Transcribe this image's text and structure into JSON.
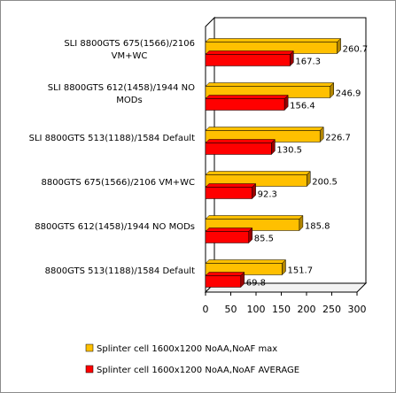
{
  "chart_data": {
    "type": "bar",
    "orientation": "horizontal",
    "style": "3d",
    "title": "",
    "xlabel": "",
    "ylabel": "",
    "xlim": [
      0,
      300
    ],
    "xticks": [
      0,
      50,
      100,
      150,
      200,
      250,
      300
    ],
    "grid": false,
    "legend_position": "bottom",
    "categories": [
      [
        "SLI 8800GTS 675(1566)/2106",
        "VM+WC"
      ],
      [
        "SLI 8800GTS 612(1458)/1944 NO",
        "MODs"
      ],
      [
        "SLI 8800GTS 513(1188)/1584 Default"
      ],
      [
        "8800GTS 675(1566)/2106 VM+WC"
      ],
      [
        "8800GTS 612(1458)/1944 NO MODs"
      ],
      [
        "8800GTS 513(1188)/1584 Default"
      ]
    ],
    "series": [
      {
        "name": "Splinter cell 1600x1200 NoAA,NoAF max",
        "color": "#ffc000",
        "color_dark": "#b38600",
        "values": [
          260.7,
          246.9,
          226.7,
          200.5,
          185.8,
          151.7
        ],
        "labels": [
          "260.7",
          "246.9",
          "226.7",
          "200.5",
          "185.8",
          "151.7"
        ]
      },
      {
        "name": "Splinter cell 1600x1200 NoAA,NoAF AVERAGE",
        "color": "#ff0000",
        "color_dark": "#990000",
        "values": [
          167.3,
          156.4,
          130.5,
          92.3,
          85.5,
          69.8
        ],
        "labels": [
          "167.3",
          "156.4",
          "130.5",
          "92.3",
          "85.5",
          "69.8"
        ]
      }
    ]
  }
}
